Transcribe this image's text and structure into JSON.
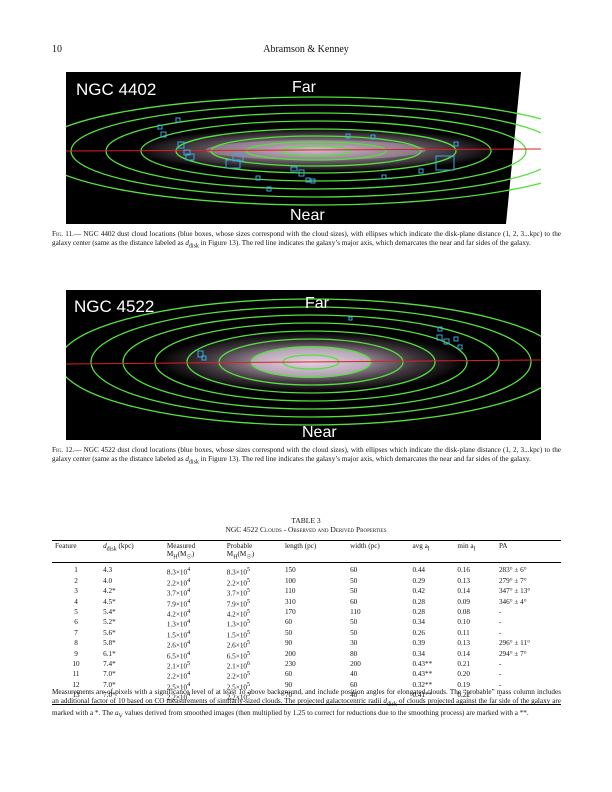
{
  "header": {
    "page_number": "10",
    "running_head": "Abramson & Kenney"
  },
  "figure11": {
    "galaxy_label": "NGC 4402",
    "far_label": "Far",
    "near_label": "Near",
    "caption_label": "Fig. 11.",
    "caption_a": "— NGC 4402 dust cloud locations (blue boxes, whose sizes correspond with the cloud sizes), with ellipses which indicate the disk-plane distance (1, 2, 3...kpc) to the galaxy center (same as the distance labeled as ",
    "caption_var": "d",
    "caption_sub": "disk",
    "caption_b": " in Figure 13). The red line indicates the galaxy’s major axis, which demarcates the near and far sides of the galaxy."
  },
  "figure12": {
    "galaxy_label": "NGC 4522",
    "far_label": "Far",
    "near_label": "Near",
    "caption_label": "Fig. 12.",
    "caption_a": "— NGC 4522 dust cloud locations (blue boxes, whose sizes correspond with the cloud sizes), with ellipses which indicate the disk-plane distance (1, 2, 3...kpc) to the galaxy center (same as the distance labeled as ",
    "caption_var": "d",
    "caption_sub": "disk",
    "caption_b": " in Figure 13). The red line indicates the galaxy’s major axis, which demarcates the near and far sides of the galaxy."
  },
  "table3": {
    "label": "TABLE 3",
    "title": "NGC 4522 Clouds - Observed and Derived Properties",
    "headers": {
      "feature": "Feature",
      "ddisk_main": "d",
      "ddisk_sub": "disk",
      "ddisk_unit": " (kpc)",
      "measured_1": "Measured",
      "measured_2": "M",
      "measured_sub": "H",
      "measured_unit": "(M",
      "probable_1": "Probable",
      "probable_2": "M",
      "probable_sub": "H",
      "probable_unit": "(M",
      "length": "length (pc)",
      "width": "width (pc)",
      "avg": "avg a",
      "avg_sub": "l",
      "min": "min a",
      "min_sub": "l",
      "pa": "PA"
    },
    "rows": [
      {
        "feature": "1",
        "ddisk": "4.3",
        "measured": "8.3×10",
        "measured_exp": "4",
        "probable": "8.3×10",
        "probable_exp": "5",
        "length": "150",
        "width": "60",
        "avg": "0.44",
        "min": "0.16",
        "pa": "283° ± 6°"
      },
      {
        "feature": "2",
        "ddisk": "4.0",
        "measured": "2.2×10",
        "measured_exp": "4",
        "probable": "2.2×10",
        "probable_exp": "5",
        "length": "100",
        "width": "50",
        "avg": "0.29",
        "min": "0.13",
        "pa": "279° ± 7°"
      },
      {
        "feature": "3",
        "ddisk": "4.2*",
        "measured": "3.7×10",
        "measured_exp": "4",
        "probable": "3.7×10",
        "probable_exp": "5",
        "length": "110",
        "width": "50",
        "avg": "0.42",
        "min": "0.14",
        "pa": "347° ± 13°"
      },
      {
        "feature": "4",
        "ddisk": "4.5*",
        "measured": "7.9×10",
        "measured_exp": "4",
        "probable": "7.9×10",
        "probable_exp": "5",
        "length": "310",
        "width": "60",
        "avg": "0.28",
        "min": "0.09",
        "pa": "346° ± 4°"
      },
      {
        "feature": "5",
        "ddisk": "5.4*",
        "measured": "4.2×10",
        "measured_exp": "4",
        "probable": "4.2×10",
        "probable_exp": "5",
        "length": "170",
        "width": "110",
        "avg": "0.28",
        "min": "0.08",
        "pa": "-"
      },
      {
        "feature": "6",
        "ddisk": "5.2*",
        "measured": "1.3×10",
        "measured_exp": "4",
        "probable": "1.3×10",
        "probable_exp": "5",
        "length": "60",
        "width": "50",
        "avg": "0.34",
        "min": "0.10",
        "pa": "-"
      },
      {
        "feature": "7",
        "ddisk": "5.6*",
        "measured": "1.5×10",
        "measured_exp": "4",
        "probable": "1.5×10",
        "probable_exp": "5",
        "length": "50",
        "width": "50",
        "avg": "0.26",
        "min": "0.11",
        "pa": "-"
      },
      {
        "feature": "8",
        "ddisk": "5.8*",
        "measured": "2.6×10",
        "measured_exp": "4",
        "probable": "2.6×10",
        "probable_exp": "5",
        "length": "90",
        "width": "30",
        "avg": "0.39",
        "min": "0.13",
        "pa": "296° ± 11°"
      },
      {
        "feature": "9",
        "ddisk": "6.1*",
        "measured": "6.5×10",
        "measured_exp": "4",
        "probable": "6.5×10",
        "probable_exp": "5",
        "length": "200",
        "width": "80",
        "avg": "0.34",
        "min": "0.14",
        "pa": "294° ± 7°"
      },
      {
        "feature": "10",
        "ddisk": "7.4*",
        "measured": "2.1×10",
        "measured_exp": "5",
        "probable": "2.1×10",
        "probable_exp": "6",
        "length": "230",
        "width": "200",
        "avg": "0.43**",
        "min": "0.21",
        "pa": "-"
      },
      {
        "feature": "11",
        "ddisk": "7.0*",
        "measured": "2.2×10",
        "measured_exp": "4",
        "probable": "2.2×10",
        "probable_exp": "5",
        "length": "60",
        "width": "40",
        "avg": "0.43**",
        "min": "0.20",
        "pa": "-"
      },
      {
        "feature": "12",
        "ddisk": "7.0*",
        "measured": "2.5×10",
        "measured_exp": "4",
        "probable": "2.5×10",
        "probable_exp": "5",
        "length": "90",
        "width": "60",
        "avg": "0.32**",
        "min": "0.19",
        "pa": "-"
      },
      {
        "feature": "13",
        "ddisk": "7.0*",
        "measured": "2.2×10",
        "measured_exp": "4",
        "probable": "2.2×10",
        "probable_exp": "5",
        "length": "70",
        "width": "40",
        "avg": "0.41**",
        "min": "0.22",
        "pa": "-"
      }
    ],
    "notes_a": "Measurements are of pixels with a significance level of at least 1σ above background, and include position angles for elongated clouds. The “probable” mass column includes an additional factor of 10 based on CO measurements of similarly-sized clouds. The projected galactocentric radii ",
    "notes_var": "d",
    "notes_sub": "disk",
    "notes_b": " of clouds projected against the far side of the galaxy are marked with a *. The ",
    "notes_var2": "a",
    "notes_sub2": "V",
    "notes_c": " values derived from smoothed images (then multiplied by 1.25 to correct for reductions due to the smoothing process) are marked with a **."
  }
}
